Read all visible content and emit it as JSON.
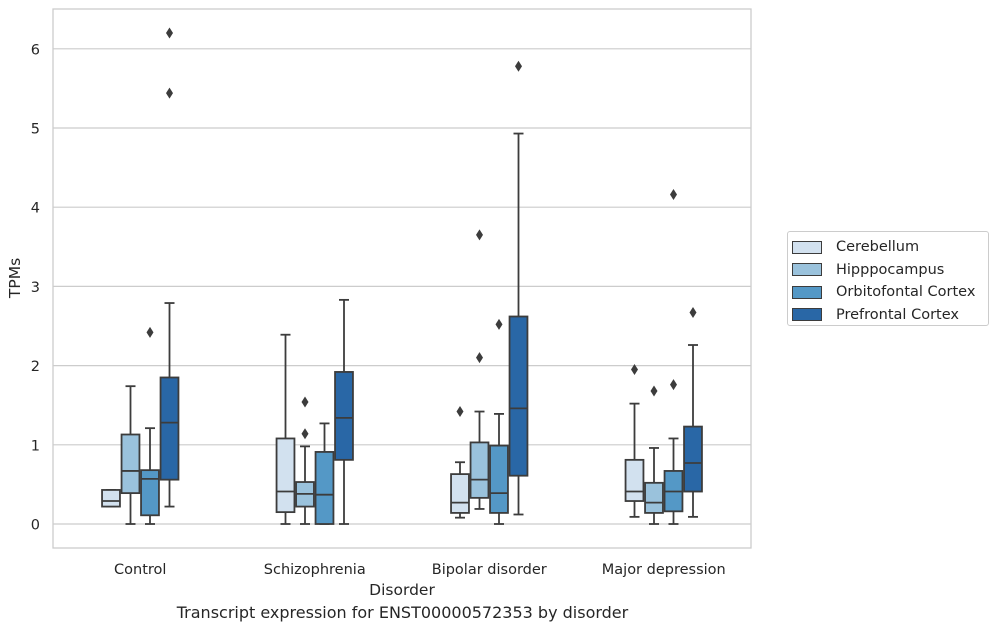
{
  "caption": "Transcript expression for ENST00000572353 by disorder",
  "chart_data": {
    "type": "boxplot",
    "xlabel": "Disorder",
    "ylabel": "TPMs",
    "ylim": [
      -0.3,
      6.5
    ],
    "yticks": [
      0,
      1,
      2,
      3,
      4,
      5,
      6
    ],
    "grid": "horizontal",
    "legend_position": "right",
    "categories": [
      "Control",
      "Schizophrenia",
      "Bipolar disorder",
      "Major depression"
    ],
    "series": [
      {
        "name": "Cerebellum",
        "color": "#d2e1ef",
        "boxes": [
          {
            "q1": 0.22,
            "median": 0.29,
            "q3": 0.43,
            "whisker_low": 0.22,
            "whisker_high": 0.43,
            "outliers": []
          },
          {
            "q1": 0.15,
            "median": 0.41,
            "q3": 1.08,
            "whisker_low": 0.0,
            "whisker_high": 2.39,
            "outliers": []
          },
          {
            "q1": 0.14,
            "median": 0.27,
            "q3": 0.63,
            "whisker_low": 0.08,
            "whisker_high": 0.78,
            "outliers": [
              1.42
            ]
          },
          {
            "q1": 0.29,
            "median": 0.41,
            "q3": 0.81,
            "whisker_low": 0.09,
            "whisker_high": 1.52,
            "outliers": [
              1.95
            ]
          }
        ]
      },
      {
        "name": "Hipppocampus",
        "color": "#9ac2dc",
        "boxes": [
          {
            "q1": 0.39,
            "median": 0.67,
            "q3": 1.13,
            "whisker_low": 0.0,
            "whisker_high": 1.74,
            "outliers": []
          },
          {
            "q1": 0.22,
            "median": 0.38,
            "q3": 0.53,
            "whisker_low": 0.0,
            "whisker_high": 0.98,
            "outliers": [
              1.14,
              1.54
            ]
          },
          {
            "q1": 0.33,
            "median": 0.56,
            "q3": 1.03,
            "whisker_low": 0.19,
            "whisker_high": 1.42,
            "outliers": [
              2.1,
              3.65
            ]
          },
          {
            "q1": 0.14,
            "median": 0.27,
            "q3": 0.52,
            "whisker_low": 0.0,
            "whisker_high": 0.96,
            "outliers": [
              1.68
            ]
          }
        ]
      },
      {
        "name": "Orbitofontal Cortex",
        "color": "#5498c6",
        "boxes": [
          {
            "q1": 0.11,
            "median": 0.57,
            "q3": 0.68,
            "whisker_low": 0.0,
            "whisker_high": 1.21,
            "outliers": [
              2.42
            ]
          },
          {
            "q1": 0.0,
            "median": 0.37,
            "q3": 0.91,
            "whisker_low": 0.0,
            "whisker_high": 1.27,
            "outliers": []
          },
          {
            "q1": 0.14,
            "median": 0.39,
            "q3": 0.99,
            "whisker_low": 0.0,
            "whisker_high": 1.39,
            "outliers": [
              2.52
            ]
          },
          {
            "q1": 0.16,
            "median": 0.41,
            "q3": 0.67,
            "whisker_low": 0.0,
            "whisker_high": 1.08,
            "outliers": [
              1.76,
              4.16
            ]
          }
        ]
      },
      {
        "name": "Prefrontal Cortex",
        "color": "#2967a6",
        "boxes": [
          {
            "q1": 0.56,
            "median": 1.28,
            "q3": 1.85,
            "whisker_low": 0.22,
            "whisker_high": 2.79,
            "outliers": [
              5.44,
              6.2
            ]
          },
          {
            "q1": 0.81,
            "median": 1.34,
            "q3": 1.92,
            "whisker_low": 0.0,
            "whisker_high": 2.83,
            "outliers": []
          },
          {
            "q1": 0.61,
            "median": 1.46,
            "q3": 2.62,
            "whisker_low": 0.12,
            "whisker_high": 4.93,
            "outliers": [
              5.78
            ]
          },
          {
            "q1": 0.41,
            "median": 0.77,
            "q3": 1.23,
            "whisker_low": 0.09,
            "whisker_high": 2.26,
            "outliers": [
              2.67
            ]
          }
        ]
      }
    ]
  }
}
